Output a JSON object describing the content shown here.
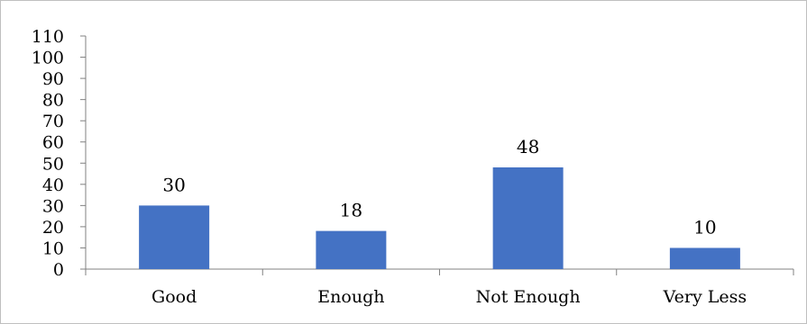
{
  "chart_data": {
    "type": "bar",
    "categories": [
      "Good",
      "Enough",
      "Not Enough",
      "Very Less"
    ],
    "values": [
      30,
      18,
      48,
      10
    ],
    "data_labels": [
      "30",
      "18",
      "48",
      "10"
    ],
    "ylim": [
      0,
      110
    ],
    "yticks": [
      0,
      10,
      20,
      30,
      40,
      50,
      60,
      70,
      80,
      90,
      100,
      110
    ],
    "ytick_labels": [
      "0",
      "10",
      "20",
      "30",
      "40",
      "50",
      "60",
      "70",
      "80",
      "90",
      "100",
      "110"
    ],
    "grid": false,
    "legend": "none",
    "bar_color": "#4472C4",
    "axis_color": "#808080"
  }
}
